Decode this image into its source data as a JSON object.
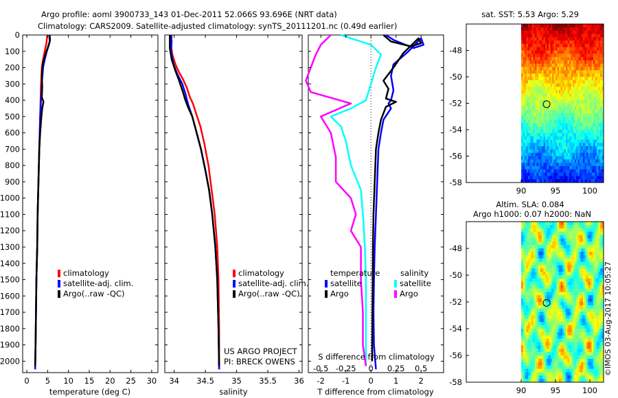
{
  "header": {
    "line1": "Argo profile: aoml 3900733_143 01-Dec-2011 52.066S 93.696E (NRT data)",
    "line2": "Climatology: CARS2009. Satellite-adjusted climatology: synTS_20111201.nc (0.49d earlier)"
  },
  "credit": "US ARGO PROJECT",
  "pi": "PI: BRECK OWENS",
  "watermark": "©IMOS 03-Aug-2017 10:05:27",
  "colors": {
    "climatology": "#ff0000",
    "satellite": "#0000ff",
    "argo": "#000000",
    "s_satellite": "#00ffff",
    "s_argo": "#ff00ff"
  },
  "chart_data": [
    {
      "type": "line",
      "id": "temperature",
      "xlabel": "temperature (deg C)",
      "ylabel": "",
      "xlim": [
        -1,
        31.5
      ],
      "ylim": [
        2070,
        0
      ],
      "x_ticks": [
        0,
        5,
        10,
        15,
        20,
        25,
        30
      ],
      "y_ticks": [
        0,
        100,
        200,
        300,
        400,
        500,
        600,
        700,
        800,
        900,
        1000,
        1100,
        1200,
        1300,
        1400,
        1500,
        1600,
        1700,
        1800,
        1900,
        2000
      ],
      "legend": {
        "position": "lower-middle",
        "labels": [
          "climatology",
          "satellite-adj. clim.",
          "Argo(..raw -QC)"
        ]
      },
      "series": [
        {
          "name": "climatology",
          "color": "#ff0000",
          "points": [
            [
              4.9,
              0
            ],
            [
              4.7,
              50
            ],
            [
              4.3,
              100
            ],
            [
              3.9,
              150
            ],
            [
              3.6,
              200
            ],
            [
              3.4,
              300
            ],
            [
              3.3,
              400
            ],
            [
              3.2,
              500
            ],
            [
              3.0,
              700
            ],
            [
              2.8,
              900
            ],
            [
              2.6,
              1100
            ],
            [
              2.5,
              1300
            ],
            [
              2.3,
              1500
            ],
            [
              2.2,
              1700
            ],
            [
              2.1,
              1900
            ],
            [
              2.0,
              2050
            ]
          ]
        },
        {
          "name": "satellite-adj. clim.",
          "color": "#0000ff",
          "points": [
            [
              5.5,
              0
            ],
            [
              5.6,
              30
            ],
            [
              5.3,
              60
            ],
            [
              4.8,
              100
            ],
            [
              4.3,
              150
            ],
            [
              3.9,
              200
            ],
            [
              3.6,
              300
            ],
            [
              3.4,
              400
            ],
            [
              3.2,
              500
            ],
            [
              3.0,
              700
            ],
            [
              2.8,
              900
            ],
            [
              2.6,
              1100
            ],
            [
              2.5,
              1300
            ],
            [
              2.3,
              1500
            ],
            [
              2.2,
              1700
            ],
            [
              2.1,
              1900
            ],
            [
              2.0,
              2050
            ]
          ]
        },
        {
          "name": "Argo(..raw -QC)",
          "color": "#000000",
          "points": [
            [
              5.4,
              0
            ],
            [
              5.5,
              40
            ],
            [
              5.0,
              80
            ],
            [
              4.3,
              130
            ],
            [
              3.8,
              180
            ],
            [
              3.6,
              250
            ],
            [
              3.7,
              320
            ],
            [
              3.6,
              380
            ],
            [
              4.0,
              410
            ],
            [
              3.7,
              450
            ],
            [
              3.5,
              500
            ],
            [
              3.2,
              600
            ],
            [
              3.0,
              700
            ],
            [
              2.8,
              900
            ],
            [
              2.6,
              1100
            ],
            [
              2.5,
              1300
            ],
            [
              2.3,
              1500
            ],
            [
              2.2,
              1700
            ],
            [
              2.1,
              1900
            ],
            [
              2.0,
              2030
            ]
          ]
        }
      ]
    },
    {
      "type": "line",
      "id": "salinity",
      "xlabel": "salinity",
      "ylabel": "",
      "xlim": [
        33.85,
        36.05
      ],
      "ylim": [
        2070,
        0
      ],
      "x_ticks": [
        34,
        34.5,
        35,
        35.5,
        36
      ],
      "x_tick_labels": [
        "34",
        "34.5",
        "35",
        "35.5",
        "36"
      ],
      "legend": {
        "position": "lower-right",
        "labels": [
          "climatology",
          "satellite-adj. clim.",
          "Argo(..raw -QC)"
        ]
      },
      "series": [
        {
          "name": "climatology",
          "color": "#ff0000",
          "points": [
            [
              33.96,
              0
            ],
            [
              33.95,
              60
            ],
            [
              33.97,
              120
            ],
            [
              34.02,
              180
            ],
            [
              34.08,
              230
            ],
            [
              34.14,
              270
            ],
            [
              34.2,
              320
            ],
            [
              34.25,
              380
            ],
            [
              34.3,
              420
            ],
            [
              34.35,
              480
            ],
            [
              34.42,
              560
            ],
            [
              34.48,
              660
            ],
            [
              34.55,
              800
            ],
            [
              34.6,
              950
            ],
            [
              34.65,
              1100
            ],
            [
              34.69,
              1300
            ],
            [
              34.71,
              1500
            ],
            [
              34.72,
              1800
            ],
            [
              34.72,
              2050
            ]
          ]
        },
        {
          "name": "satellite-adj. clim.",
          "color": "#0000ff",
          "points": [
            [
              33.95,
              0
            ],
            [
              33.96,
              40
            ],
            [
              33.95,
              100
            ],
            [
              33.99,
              180
            ],
            [
              34.05,
              240
            ],
            [
              34.13,
              300
            ],
            [
              34.18,
              360
            ],
            [
              34.22,
              420
            ],
            [
              34.29,
              500
            ],
            [
              34.36,
              600
            ],
            [
              34.43,
              700
            ],
            [
              34.5,
              830
            ],
            [
              34.56,
              950
            ],
            [
              34.61,
              1100
            ],
            [
              34.66,
              1300
            ],
            [
              34.69,
              1500
            ],
            [
              34.71,
              1800
            ],
            [
              34.72,
              2050
            ]
          ]
        },
        {
          "name": "Argo(..raw -QC)",
          "color": "#000000",
          "points": [
            [
              33.93,
              0
            ],
            [
              33.93,
              80
            ],
            [
              33.96,
              150
            ],
            [
              34.02,
              220
            ],
            [
              34.08,
              280
            ],
            [
              34.14,
              350
            ],
            [
              34.18,
              400
            ],
            [
              34.22,
              440
            ],
            [
              34.29,
              500
            ],
            [
              34.36,
              600
            ],
            [
              34.43,
              700
            ],
            [
              34.5,
              830
            ],
            [
              34.56,
              950
            ],
            [
              34.61,
              1100
            ],
            [
              34.66,
              1300
            ],
            [
              34.69,
              1500
            ],
            [
              34.71,
              1800
            ],
            [
              34.72,
              2030
            ]
          ]
        }
      ]
    },
    {
      "type": "line",
      "id": "difference",
      "xlabel": "T difference from climatology",
      "title_bottom": "S difference from climatology",
      "xlim": [
        -2.5,
        2.9
      ],
      "ylim": [
        2070,
        0
      ],
      "x_ticks": [
        -2,
        -1,
        0,
        1,
        2
      ],
      "top_axis_ticks": [
        -0.5,
        -0.25,
        0,
        0.25,
        0.5
      ],
      "top_axis_tick_labels": [
        "-0.5",
        "-0.25",
        "0",
        "0.25",
        "0.5"
      ],
      "legend": {
        "temperature_header": "temperature",
        "salinity_header": "salinity",
        "labels": [
          "satellite",
          "Argo",
          "satellite",
          "Argo"
        ]
      },
      "series": [
        {
          "name": "satellite",
          "group": "temperature",
          "color": "#0000ff",
          "points": [
            [
              0.6,
              0
            ],
            [
              0.9,
              30
            ],
            [
              1.7,
              80
            ],
            [
              2.1,
              60
            ],
            [
              2.0,
              20
            ],
            [
              1.5,
              100
            ],
            [
              0.9,
              180
            ],
            [
              0.8,
              250
            ],
            [
              0.9,
              340
            ],
            [
              0.8,
              400
            ],
            [
              0.7,
              420
            ],
            [
              0.8,
              450
            ],
            [
              0.5,
              520
            ],
            [
              0.4,
              600
            ],
            [
              0.3,
              700
            ],
            [
              0.25,
              900
            ],
            [
              0.2,
              1100
            ],
            [
              0.15,
              1300
            ],
            [
              0.12,
              1500
            ],
            [
              0.1,
              1700
            ],
            [
              0.12,
              1900
            ],
            [
              0.2,
              2050
            ]
          ]
        },
        {
          "name": "Argo",
          "group": "temperature",
          "color": "#000000",
          "points": [
            [
              0.5,
              0
            ],
            [
              0.8,
              40
            ],
            [
              1.6,
              70
            ],
            [
              2.0,
              50
            ],
            [
              1.9,
              20
            ],
            [
              1.3,
              110
            ],
            [
              0.9,
              200
            ],
            [
              0.5,
              280
            ],
            [
              0.7,
              330
            ],
            [
              0.6,
              390
            ],
            [
              1.0,
              410
            ],
            [
              0.6,
              440
            ],
            [
              0.4,
              520
            ],
            [
              0.3,
              600
            ],
            [
              0.2,
              700
            ],
            [
              0.15,
              900
            ],
            [
              0.1,
              1100
            ],
            [
              0.08,
              1300
            ],
            [
              0.07,
              1500
            ],
            [
              0.06,
              1700
            ],
            [
              0.05,
              1900
            ],
            [
              0.05,
              2000
            ]
          ]
        },
        {
          "name": "satellite",
          "group": "salinity",
          "color": "#00ffff",
          "points": [
            [
              -0.3,
              0
            ],
            [
              0.0,
              60
            ],
            [
              0.1,
              120
            ],
            [
              0.05,
              200
            ],
            [
              0.0,
              300
            ],
            [
              -0.05,
              400
            ],
            [
              -0.2,
              450
            ],
            [
              -0.4,
              500
            ],
            [
              -0.3,
              560
            ],
            [
              -0.25,
              650
            ],
            [
              -0.2,
              800
            ],
            [
              -0.1,
              950
            ],
            [
              -0.08,
              1100
            ],
            [
              -0.06,
              1300
            ],
            [
              -0.05,
              1500
            ],
            [
              -0.05,
              1700
            ],
            [
              -0.05,
              1900
            ],
            [
              -0.05,
              2030
            ]
          ]
        },
        {
          "name": "Argo",
          "group": "salinity",
          "color": "#ff00ff",
          "points": [
            [
              -0.4,
              0
            ],
            [
              -0.5,
              60
            ],
            [
              -0.55,
              120
            ],
            [
              -0.6,
              200
            ],
            [
              -0.65,
              280
            ],
            [
              -0.6,
              350
            ],
            [
              -0.2,
              420
            ],
            [
              -0.5,
              500
            ],
            [
              -0.4,
              600
            ],
            [
              -0.35,
              750
            ],
            [
              -0.35,
              900
            ],
            [
              -0.2,
              1000
            ],
            [
              -0.15,
              1100
            ],
            [
              -0.2,
              1200
            ],
            [
              -0.1,
              1300
            ],
            [
              -0.1,
              1500
            ],
            [
              -0.08,
              1700
            ],
            [
              -0.08,
              1900
            ],
            [
              -0.05,
              2030
            ]
          ]
        }
      ]
    },
    {
      "type": "heatmap",
      "id": "sst_map",
      "title": "sat. SST: 5.53 Argo: 5.29",
      "xlim": [
        82,
        102
      ],
      "ylim": [
        -58,
        -46
      ],
      "x_ticks": [
        90,
        95,
        100
      ],
      "y_ticks": [
        -48,
        -50,
        -52,
        -54,
        -56,
        -58
      ],
      "marker": [
        93.7,
        -52.07
      ],
      "colormap": "jet"
    },
    {
      "type": "heatmap",
      "id": "sla_map",
      "title": "Altim. SLA: 0.084",
      "subtitle": "Argo h1000: 0.07 h2000: NaN",
      "xlim": [
        82,
        102
      ],
      "ylim": [
        -58,
        -46
      ],
      "x_ticks": [
        90,
        95,
        100
      ],
      "y_ticks": [
        -48,
        -50,
        -52,
        -54,
        -56,
        -58
      ],
      "marker": [
        93.7,
        -52.07
      ],
      "colormap": "jet"
    }
  ]
}
